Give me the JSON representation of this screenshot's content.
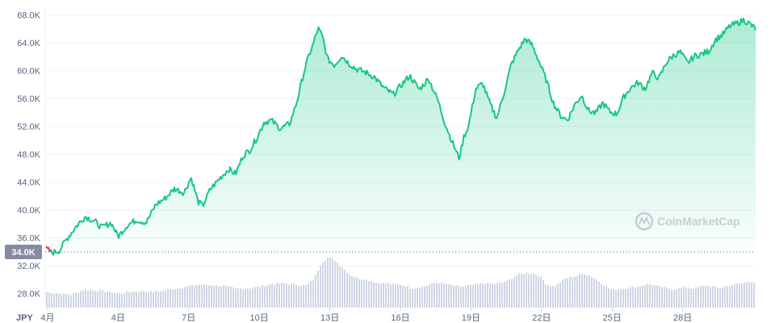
{
  "chart_data": {
    "type": "area",
    "currency_label": "JPY",
    "watermark": "CoinMarketCap",
    "start_price_label": "34.0K",
    "start_price": 34000,
    "ylim": [
      26000,
      69000
    ],
    "price_ylim": [
      34000,
      69000
    ],
    "y_ticks": [
      {
        "label": "68.0K",
        "value": 68000
      },
      {
        "label": "64.0K",
        "value": 64000
      },
      {
        "label": "60.0K",
        "value": 60000
      },
      {
        "label": "56.0K",
        "value": 56000
      },
      {
        "label": "52.0K",
        "value": 52000
      },
      {
        "label": "48.0K",
        "value": 48000
      },
      {
        "label": "44.0K",
        "value": 44000
      },
      {
        "label": "40.0K",
        "value": 40000
      },
      {
        "label": "36.0K",
        "value": 36000
      },
      {
        "label": "32.0K",
        "value": 32000
      },
      {
        "label": "28.0K",
        "value": 28000
      }
    ],
    "x_ticks": [
      {
        "label": "4月",
        "day": 1
      },
      {
        "label": "4日",
        "day": 4
      },
      {
        "label": "7日",
        "day": 7
      },
      {
        "label": "10日",
        "day": 10
      },
      {
        "label": "13日",
        "day": 13
      },
      {
        "label": "16日",
        "day": 16
      },
      {
        "label": "19日",
        "day": 19
      },
      {
        "label": "22日",
        "day": 22
      },
      {
        "label": "25日",
        "day": 25
      },
      {
        "label": "28日",
        "day": 28
      }
    ],
    "xlim": [
      0.9,
      31.1
    ],
    "series": [
      {
        "kind": "price",
        "x": [
          0.9,
          1.2,
          1.5,
          1.8,
          2.2,
          2.6,
          3.0,
          3.3,
          3.7,
          4.0,
          4.4,
          4.8,
          5.2,
          5.6,
          6.0,
          6.4,
          6.8,
          7.1,
          7.4,
          7.6,
          7.9,
          8.3,
          8.7,
          9.0,
          9.3,
          9.6,
          9.9,
          10.2,
          10.5,
          10.9,
          11.3,
          11.6,
          11.9,
          12.1,
          12.3,
          12.5,
          12.7,
          12.9,
          13.2,
          13.5,
          13.8,
          14.1,
          14.5,
          14.9,
          15.3,
          15.7,
          16.1,
          16.4,
          16.8,
          17.2,
          17.6,
          17.9,
          18.2,
          18.5,
          18.7,
          18.9,
          19.2,
          19.5,
          19.8,
          20.1,
          20.4,
          20.7,
          21.0,
          21.3,
          21.6,
          21.9,
          22.2,
          22.5,
          22.8,
          23.1,
          23.4,
          23.7,
          24.0,
          24.3,
          24.6,
          24.9,
          25.2,
          25.5,
          25.8,
          26.1,
          26.4,
          26.7,
          27.0,
          27.3,
          27.6,
          27.9,
          28.2,
          28.5,
          28.8,
          29.1,
          29.4,
          29.7,
          30.0,
          30.3,
          30.6,
          30.9,
          31.1
        ],
        "values": [
          34500,
          33900,
          34200,
          35800,
          37600,
          39100,
          38400,
          37500,
          38200,
          36200,
          37900,
          38600,
          38200,
          40800,
          41700,
          43100,
          42500,
          44700,
          41200,
          40600,
          42900,
          44500,
          45900,
          45200,
          47800,
          48600,
          50400,
          52600,
          52900,
          51700,
          52400,
          55600,
          59800,
          62100,
          63900,
          66100,
          64800,
          61700,
          60800,
          62200,
          61100,
          60300,
          59800,
          59100,
          57500,
          56600,
          58200,
          59300,
          57300,
          58900,
          55700,
          52400,
          49800,
          47400,
          50600,
          52100,
          57400,
          58200,
          55300,
          53200,
          56800,
          60800,
          62900,
          64600,
          63700,
          61300,
          58700,
          55400,
          53600,
          52900,
          55100,
          56500,
          54300,
          53900,
          55400,
          54100,
          53800,
          56300,
          57600,
          58300,
          57400,
          59700,
          58900,
          61200,
          62200,
          62700,
          61100,
          62100,
          62400,
          62800,
          64500,
          65200,
          66400,
          66800,
          67300,
          66600,
          66000
        ]
      },
      {
        "kind": "volume",
        "x": [
          0.9,
          1.5,
          2.0,
          2.5,
          3.0,
          3.5,
          4.0,
          4.5,
          5.0,
          5.5,
          6.0,
          6.5,
          7.0,
          7.5,
          8.0,
          8.5,
          9.0,
          9.5,
          10.0,
          10.5,
          11.0,
          11.5,
          12.0,
          12.3,
          12.6,
          12.9,
          13.2,
          13.5,
          13.8,
          14.1,
          14.5,
          15.0,
          15.5,
          16.0,
          16.5,
          17.0,
          17.5,
          18.0,
          18.5,
          19.0,
          19.5,
          20.0,
          20.5,
          21.0,
          21.3,
          21.6,
          21.9,
          22.2,
          22.5,
          23.0,
          23.5,
          23.8,
          24.1,
          24.4,
          24.7,
          25.0,
          25.5,
          26.0,
          26.5,
          27.0,
          27.5,
          28.0,
          28.5,
          29.0,
          29.5,
          30.0,
          30.5,
          30.8,
          31.1
        ],
        "values": [
          28200,
          28000,
          27800,
          28600,
          28500,
          28300,
          28000,
          28300,
          28400,
          28300,
          28500,
          28800,
          29100,
          29300,
          29200,
          29100,
          28700,
          28800,
          29000,
          29400,
          29500,
          29300,
          29200,
          30200,
          32400,
          33200,
          32800,
          31700,
          30800,
          30300,
          30000,
          29600,
          29400,
          29300,
          28800,
          29100,
          29600,
          29300,
          29000,
          29200,
          29500,
          29400,
          29800,
          30800,
          31000,
          30900,
          30500,
          29300,
          29000,
          30200,
          30600,
          30900,
          30500,
          29800,
          29000,
          28500,
          28800,
          29000,
          29400,
          29000,
          28600,
          28900,
          28800,
          29200,
          28800,
          29200,
          29500,
          29800,
          29600
        ]
      }
    ],
    "colors": {
      "up_line": "#16c784",
      "down_line": "#ea3943",
      "volume_bar": "#cfd6e4",
      "baseline_label_bg": "#858ca2",
      "watermark": "#c6ccd6"
    }
  }
}
